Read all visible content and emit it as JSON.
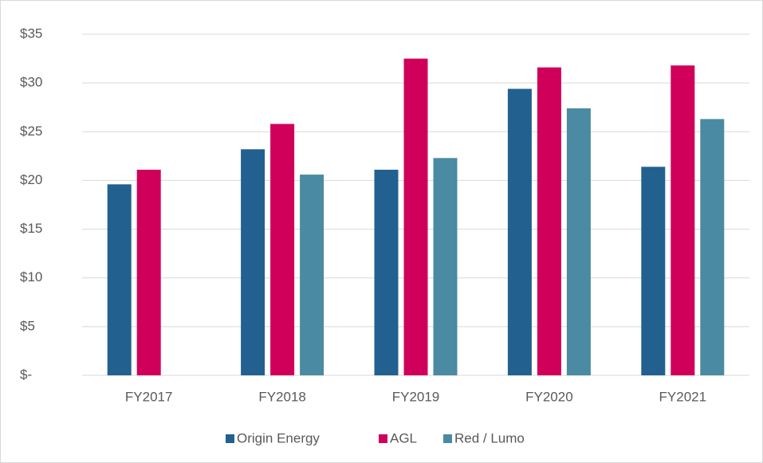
{
  "chart_data": {
    "type": "bar",
    "categories": [
      "FY2017",
      "FY2018",
      "FY2019",
      "FY2020",
      "FY2021"
    ],
    "series": [
      {
        "name": "Origin Energy",
        "color": "#22608f",
        "values": [
          19.6,
          23.2,
          21.1,
          29.4,
          21.4
        ]
      },
      {
        "name": "AGL",
        "color": "#d0005a",
        "values": [
          21.1,
          25.8,
          32.5,
          31.6,
          31.8
        ]
      },
      {
        "name": "Red / Lumo",
        "color": "#4a8aa3",
        "values": [
          null,
          20.6,
          22.3,
          27.4,
          26.3
        ]
      }
    ],
    "ylim": [
      0,
      35
    ],
    "yticks": [
      {
        "value": 0,
        "label": "$-"
      },
      {
        "value": 5,
        "label": "$5"
      },
      {
        "value": 10,
        "label": "$10"
      },
      {
        "value": 15,
        "label": "$15"
      },
      {
        "value": 20,
        "label": "$20"
      },
      {
        "value": 25,
        "label": "$25"
      },
      {
        "value": 30,
        "label": "$30"
      },
      {
        "value": 35,
        "label": "$35"
      }
    ],
    "grid": true,
    "legend": "bottom"
  }
}
